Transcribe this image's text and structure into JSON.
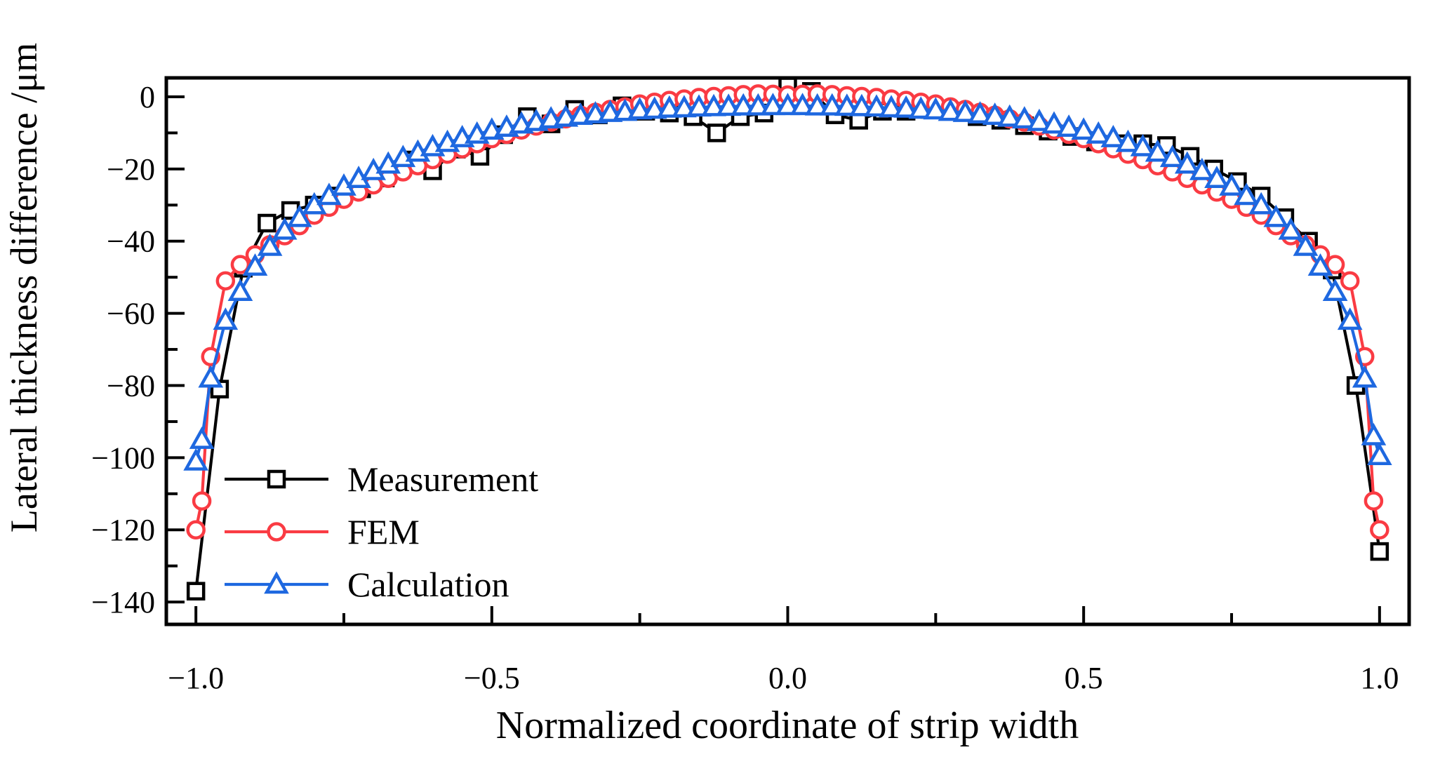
{
  "figure": {
    "background_color": "#ffffff",
    "frame_color": "#000000"
  },
  "chart_data": {
    "type": "line",
    "title": "",
    "xlabel": "Normalized coordinate of strip width",
    "ylabel": "Lateral thickness difference /μm",
    "grid": false,
    "legend_position": "inside-lower-left",
    "xlim": [
      -1.05,
      1.05
    ],
    "ylim": [
      -146.2,
      5.25
    ],
    "x_ticks": [
      -1.0,
      -0.5,
      0.0,
      0.5,
      1.0
    ],
    "x_tick_labels": [
      "−1.0",
      "−0.5",
      "0.0",
      "0.5",
      "1.0"
    ],
    "x_minor_ticks": [
      -0.75,
      -0.25,
      0.25,
      0.75
    ],
    "y_ticks": [
      0,
      -20,
      -40,
      -60,
      -80,
      -100,
      -120,
      -140
    ],
    "y_tick_labels": [
      "0",
      "−20",
      "−40",
      "−60",
      "−80",
      "−100",
      "−120",
      "−140"
    ],
    "y_minor_ticks": [
      -10,
      -30,
      -50,
      -70,
      -90,
      -110,
      -130
    ],
    "series": [
      {
        "name": "Measurement",
        "color": "#000000",
        "marker": "square",
        "x": [
          -1,
          -0.96,
          -0.92,
          -0.88,
          -0.84,
          -0.8,
          -0.76,
          -0.72,
          -0.68,
          -0.64,
          -0.6,
          -0.56,
          -0.52,
          -0.48,
          -0.44,
          -0.4,
          -0.36,
          -0.32,
          -0.28,
          -0.24,
          -0.2,
          -0.16,
          -0.12,
          -0.08,
          -0.04,
          0,
          0.04,
          0.08,
          0.12,
          0.16,
          0.2,
          0.24,
          0.28,
          0.32,
          0.36,
          0.4,
          0.44,
          0.48,
          0.52,
          0.56,
          0.6,
          0.64,
          0.68,
          0.72,
          0.76,
          0.8,
          0.84,
          0.88,
          0.92,
          0.96,
          1
        ],
        "values": [
          -137,
          -81,
          -47.5,
          -35,
          -31.5,
          -30,
          -27.5,
          -25.5,
          -22.5,
          -17.5,
          -20.5,
          -14.5,
          -16.5,
          -10.5,
          -5.5,
          -7.5,
          -3.5,
          -5,
          -2.5,
          -4,
          -4.5,
          -5.5,
          -10,
          -5.5,
          -4.5,
          3,
          1.5,
          -5,
          -6.5,
          -4,
          -4,
          -3.5,
          -4,
          -5.5,
          -6.5,
          -8,
          -9.5,
          -11,
          -12.5,
          -13,
          -13,
          -13.5,
          -16.5,
          -20,
          -23.5,
          -27.5,
          -33.5,
          -40,
          -48,
          -80,
          -126
        ]
      },
      {
        "name": "FEM",
        "color": "#fa3b43",
        "marker": "circle",
        "x": [
          -1,
          -0.99,
          -0.975,
          -0.95,
          -0.925,
          -0.9,
          -0.875,
          -0.85,
          -0.825,
          -0.8,
          -0.775,
          -0.75,
          -0.725,
          -0.7,
          -0.675,
          -0.65,
          -0.625,
          -0.6,
          -0.575,
          -0.55,
          -0.525,
          -0.5,
          -0.475,
          -0.45,
          -0.425,
          -0.4,
          -0.375,
          -0.35,
          -0.325,
          -0.3,
          -0.275,
          -0.25,
          -0.225,
          -0.2,
          -0.175,
          -0.15,
          -0.125,
          -0.1,
          -0.075,
          -0.05,
          -0.025,
          0,
          0.025,
          0.05,
          0.075,
          0.1,
          0.125,
          0.15,
          0.175,
          0.2,
          0.225,
          0.25,
          0.275,
          0.3,
          0.325,
          0.35,
          0.375,
          0.4,
          0.425,
          0.45,
          0.475,
          0.5,
          0.525,
          0.55,
          0.575,
          0.6,
          0.625,
          0.65,
          0.675,
          0.7,
          0.725,
          0.75,
          0.775,
          0.8,
          0.825,
          0.85,
          0.875,
          0.9,
          0.925,
          0.95,
          0.975,
          0.99,
          1
        ],
        "values": [
          -120,
          -112,
          -72,
          -51,
          -46.5,
          -43.8,
          -41,
          -38.5,
          -35.7,
          -32.8,
          -30.6,
          -28.4,
          -26.4,
          -24.4,
          -22.6,
          -20.8,
          -19.1,
          -17.4,
          -15.9,
          -14.4,
          -13,
          -11.6,
          -10.4,
          -9.2,
          -8.1,
          -7,
          -6.1,
          -5.1,
          -4.3,
          -3.5,
          -2.8,
          -2,
          -1.5,
          -1,
          -0.6,
          -0.2,
          0.1,
          0.3,
          0.6,
          0.8,
          0.7,
          0.5,
          0.7,
          0.8,
          0.6,
          0.3,
          0.1,
          -0.2,
          -0.6,
          -1,
          -1.5,
          -2,
          -2.8,
          -3.5,
          -4.3,
          -5.1,
          -6.1,
          -7,
          -8.1,
          -9.2,
          -10.4,
          -11.6,
          -13,
          -14.4,
          -15.9,
          -17.4,
          -19.1,
          -20.8,
          -22.6,
          -24.4,
          -26.4,
          -28.4,
          -30.6,
          -32.8,
          -35.7,
          -38.5,
          -41,
          -43.8,
          -46.5,
          -51,
          -72,
          -112,
          -120
        ]
      },
      {
        "name": "Calculation",
        "color": "#1e68e0",
        "marker": "triangle",
        "x": [
          -1,
          -0.99,
          -0.975,
          -0.95,
          -0.925,
          -0.9,
          -0.875,
          -0.85,
          -0.825,
          -0.8,
          -0.775,
          -0.75,
          -0.725,
          -0.7,
          -0.675,
          -0.65,
          -0.625,
          -0.6,
          -0.575,
          -0.55,
          -0.525,
          -0.5,
          -0.475,
          -0.45,
          -0.425,
          -0.4,
          -0.375,
          -0.35,
          -0.325,
          -0.3,
          -0.275,
          -0.25,
          -0.225,
          -0.2,
          -0.175,
          -0.15,
          -0.125,
          -0.1,
          -0.075,
          -0.05,
          -0.025,
          0,
          0.025,
          0.05,
          0.075,
          0.1,
          0.125,
          0.15,
          0.175,
          0.2,
          0.225,
          0.25,
          0.275,
          0.3,
          0.325,
          0.35,
          0.375,
          0.4,
          0.425,
          0.45,
          0.475,
          0.5,
          0.525,
          0.55,
          0.575,
          0.6,
          0.625,
          0.65,
          0.675,
          0.7,
          0.725,
          0.75,
          0.775,
          0.8,
          0.825,
          0.85,
          0.875,
          0.9,
          0.925,
          0.95,
          0.975,
          0.99,
          1
        ],
        "values": [
          -101,
          -95,
          -78,
          -62,
          -54,
          -47,
          -41.5,
          -37,
          -33.5,
          -30,
          -27.4,
          -24.8,
          -22.7,
          -20.5,
          -18.7,
          -16.9,
          -15.4,
          -13.9,
          -12.7,
          -11.4,
          -10.4,
          -9.3,
          -8.5,
          -7.6,
          -6.9,
          -6.2,
          -5.7,
          -5.2,
          -4.8,
          -4.4,
          -4.1,
          -3.7,
          -3.5,
          -3.2,
          -3.1,
          -2.9,
          -2.8,
          -2.7,
          -2.6,
          -2.6,
          -2.5,
          -2.5,
          -2.5,
          -2.6,
          -2.6,
          -2.7,
          -2.8,
          -2.9,
          -3.1,
          -3.2,
          -3.5,
          -3.7,
          -4.1,
          -4.4,
          -4.8,
          -5.2,
          -5.7,
          -6.2,
          -6.9,
          -7.6,
          -8.5,
          -9.3,
          -10.4,
          -11.4,
          -12.7,
          -13.9,
          -15.4,
          -16.9,
          -18.7,
          -20.5,
          -22.7,
          -24.8,
          -27.4,
          -30,
          -33.5,
          -37,
          -41.5,
          -47,
          -54,
          -62,
          -78,
          -94,
          -99.5
        ]
      }
    ]
  }
}
